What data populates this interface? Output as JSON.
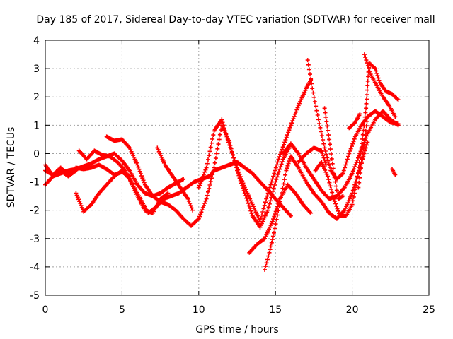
{
  "chart_data": {
    "type": "scatter",
    "title": "Day 185 of 2017, Sidereal Day-to-day VTEC variation (SDTVAR) for receiver mall",
    "xlabel": "GPS time / hours",
    "ylabel": "SDTVAR / TECUs",
    "xlim": [
      0,
      25
    ],
    "ylim": [
      -5,
      4
    ],
    "xticks": [
      "0",
      "5",
      "10",
      "15",
      "20",
      "25"
    ],
    "yticks": [
      "-5",
      "-4",
      "-3",
      "-2",
      "-1",
      "0",
      "1",
      "2",
      "3",
      "4"
    ],
    "grid": true,
    "marker": "plus",
    "color": "#ff0000",
    "series": [
      {
        "points": [
          [
            0.0,
            -0.6
          ],
          [
            0.5,
            -0.75
          ],
          [
            1.0,
            -0.5
          ],
          [
            1.5,
            -0.75
          ],
          [
            2.0,
            -0.5
          ],
          [
            2.5,
            -0.55
          ],
          [
            3.0,
            -0.5
          ],
          [
            3.5,
            -0.4
          ],
          [
            4.0,
            -0.55
          ],
          [
            4.5,
            -0.75
          ],
          [
            5.0,
            -0.65
          ],
          [
            5.5,
            -0.8
          ]
        ]
      },
      {
        "points": [
          [
            0.0,
            -1.1
          ],
          [
            0.5,
            -0.8
          ],
          [
            1.0,
            -0.7
          ],
          [
            1.5,
            -0.6
          ],
          [
            2.0,
            -0.55
          ],
          [
            2.5,
            -0.45
          ],
          [
            3.0,
            -0.35
          ],
          [
            3.5,
            -0.2
          ],
          [
            4.0,
            -0.1
          ],
          [
            4.5,
            0.0
          ],
          [
            5.0,
            -0.25
          ],
          [
            5.5,
            -0.6
          ],
          [
            6.0,
            -1.1
          ],
          [
            6.5,
            -1.4
          ],
          [
            7.0,
            -1.5
          ],
          [
            7.5,
            -1.4
          ],
          [
            8.0,
            -1.2
          ],
          [
            8.5,
            -1.05
          ],
          [
            9.0,
            -0.9
          ]
        ]
      },
      {
        "points": [
          [
            0.0,
            -0.4
          ],
          [
            0.5,
            -0.8
          ],
          [
            1.0,
            -0.6
          ],
          [
            1.5,
            -0.8
          ],
          [
            2.0,
            -0.6
          ]
        ]
      },
      {
        "points": [
          [
            2.0,
            -1.4
          ],
          [
            2.5,
            -2.05
          ],
          [
            3.0,
            -1.8
          ],
          [
            3.5,
            -1.4
          ],
          [
            4.0,
            -1.1
          ],
          [
            4.5,
            -0.8
          ],
          [
            5.0,
            -0.6
          ],
          [
            5.5,
            -0.9
          ],
          [
            6.0,
            -1.5
          ],
          [
            6.5,
            -2.0
          ],
          [
            7.0,
            -2.1
          ],
          [
            7.5,
            -1.6
          ],
          [
            8.0,
            -1.4
          ]
        ]
      },
      {
        "points": [
          [
            2.2,
            0.1
          ],
          [
            2.7,
            -0.2
          ],
          [
            3.2,
            0.1
          ],
          [
            3.7,
            -0.05
          ],
          [
            4.2,
            -0.1
          ],
          [
            4.7,
            -0.3
          ],
          [
            5.2,
            -0.6
          ],
          [
            5.7,
            -1.1
          ],
          [
            6.2,
            -1.6
          ],
          [
            6.7,
            -2.1
          ],
          [
            7.2,
            -1.9
          ],
          [
            7.7,
            -1.6
          ],
          [
            8.2,
            -1.5
          ],
          [
            8.7,
            -1.4
          ],
          [
            9.2,
            -1.2
          ],
          [
            9.7,
            -1.0
          ],
          [
            10.2,
            -0.9
          ],
          [
            10.7,
            -0.8
          ],
          [
            11.0,
            -0.6
          ],
          [
            11.5,
            -0.5
          ],
          [
            12.0,
            -0.4
          ],
          [
            12.5,
            -0.3
          ],
          [
            13.0,
            -0.5
          ],
          [
            13.5,
            -0.7
          ],
          [
            14.0,
            -1.0
          ],
          [
            14.5,
            -1.3
          ],
          [
            15.0,
            -1.6
          ],
          [
            15.5,
            -1.9
          ],
          [
            16.0,
            -2.2
          ]
        ]
      },
      {
        "points": [
          [
            4.0,
            0.6
          ],
          [
            4.5,
            0.45
          ],
          [
            5.0,
            0.5
          ],
          [
            5.5,
            0.2
          ],
          [
            6.0,
            -0.4
          ],
          [
            6.5,
            -1.1
          ],
          [
            7.0,
            -1.5
          ],
          [
            7.5,
            -1.7
          ],
          [
            8.0,
            -1.8
          ],
          [
            8.5,
            -2.0
          ],
          [
            9.0,
            -2.3
          ],
          [
            9.5,
            -2.55
          ],
          [
            10.0,
            -2.3
          ],
          [
            10.5,
            -1.6
          ],
          [
            11.0,
            -0.5
          ],
          [
            11.5,
            1.0
          ],
          [
            12.0,
            0.4
          ],
          [
            12.5,
            -0.6
          ],
          [
            13.0,
            -1.4
          ],
          [
            13.5,
            -2.2
          ],
          [
            14.0,
            -2.6
          ],
          [
            14.5,
            -2.0
          ],
          [
            15.0,
            -1.0
          ],
          [
            15.5,
            -0.2
          ],
          [
            16.0,
            0.3
          ]
        ]
      },
      {
        "points": [
          [
            7.3,
            0.2
          ],
          [
            7.8,
            -0.4
          ],
          [
            8.3,
            -0.8
          ],
          [
            8.8,
            -1.2
          ],
          [
            9.3,
            -1.6
          ],
          [
            9.6,
            -2.0
          ]
        ]
      },
      {
        "points": [
          [
            10.0,
            -1.2
          ],
          [
            10.5,
            -0.5
          ],
          [
            11.0,
            0.8
          ],
          [
            11.5,
            1.2
          ],
          [
            12.0,
            0.3
          ],
          [
            12.5,
            -0.5
          ],
          [
            13.0,
            -1.2
          ],
          [
            13.5,
            -1.8
          ],
          [
            14.0,
            -2.4
          ],
          [
            14.4,
            -1.6
          ],
          [
            14.8,
            -0.9
          ],
          [
            15.2,
            -0.2
          ],
          [
            15.6,
            0.4
          ],
          [
            16.0,
            1.0
          ],
          [
            16.5,
            1.7
          ],
          [
            17.0,
            2.3
          ],
          [
            17.3,
            2.6
          ]
        ]
      },
      {
        "points": [
          [
            13.3,
            -3.5
          ],
          [
            13.8,
            -3.2
          ],
          [
            14.3,
            -3.0
          ],
          [
            14.8,
            -2.4
          ],
          [
            15.3,
            -1.6
          ],
          [
            15.8,
            -1.1
          ],
          [
            16.3,
            -1.4
          ],
          [
            16.8,
            -1.8
          ],
          [
            17.3,
            -2.1
          ]
        ]
      },
      {
        "points": [
          [
            14.3,
            -4.1
          ],
          [
            14.6,
            -3.5
          ],
          [
            14.9,
            -2.8
          ],
          [
            15.3,
            -1.7
          ],
          [
            15.7,
            -0.6
          ],
          [
            16.0,
            -0.1
          ],
          [
            16.5,
            -0.5
          ],
          [
            17.0,
            -1.0
          ],
          [
            17.5,
            -1.4
          ],
          [
            18.0,
            -1.7
          ],
          [
            18.5,
            -2.1
          ],
          [
            19.0,
            -2.3
          ],
          [
            19.5,
            -2.0
          ],
          [
            20.0,
            -1.4
          ],
          [
            20.5,
            -0.5
          ],
          [
            21.0,
            0.4
          ]
        ]
      },
      {
        "points": [
          [
            15.5,
            0.0
          ],
          [
            16.0,
            0.35
          ],
          [
            16.5,
            0.0
          ],
          [
            17.0,
            -0.5
          ],
          [
            17.5,
            -0.9
          ],
          [
            18.0,
            -1.3
          ],
          [
            18.5,
            -1.6
          ],
          [
            19.0,
            -1.5
          ],
          [
            19.5,
            -1.2
          ],
          [
            20.0,
            -0.7
          ],
          [
            20.5,
            0.0
          ],
          [
            21.0,
            0.7
          ],
          [
            21.5,
            1.2
          ],
          [
            22.0,
            1.5
          ],
          [
            22.5,
            1.2
          ],
          [
            23.0,
            1.0
          ]
        ]
      },
      {
        "points": [
          [
            16.5,
            -0.3
          ],
          [
            17.0,
            0.0
          ],
          [
            17.5,
            0.2
          ],
          [
            18.0,
            0.1
          ],
          [
            18.3,
            -0.4
          ]
        ]
      },
      {
        "points": [
          [
            17.1,
            3.3
          ],
          [
            17.4,
            2.3
          ],
          [
            17.8,
            1.2
          ],
          [
            18.2,
            0.2
          ],
          [
            18.6,
            -0.6
          ],
          [
            19.0,
            -0.9
          ],
          [
            19.4,
            -0.7
          ],
          [
            19.8,
            0.0
          ],
          [
            20.2,
            0.6
          ],
          [
            20.6,
            1.0
          ],
          [
            21.0,
            1.3
          ]
        ]
      },
      {
        "points": [
          [
            18.2,
            1.6
          ],
          [
            18.5,
            0.5
          ],
          [
            18.8,
            -0.7
          ],
          [
            19.1,
            -1.6
          ],
          [
            19.4,
            -1.5
          ]
        ]
      },
      {
        "points": [
          [
            19.8,
            0.9
          ],
          [
            20.2,
            1.1
          ],
          [
            20.5,
            1.4
          ]
        ]
      },
      {
        "points": [
          [
            17.6,
            -0.6
          ],
          [
            18.0,
            -0.3
          ],
          [
            18.4,
            -0.8
          ],
          [
            18.8,
            -1.6
          ],
          [
            19.2,
            -2.2
          ],
          [
            19.6,
            -2.2
          ],
          [
            20.0,
            -1.8
          ],
          [
            20.3,
            -1.0
          ],
          [
            20.6,
            0.2
          ],
          [
            20.9,
            1.6
          ],
          [
            21.1,
            3.2
          ],
          [
            21.5,
            3.0
          ],
          [
            21.8,
            2.5
          ],
          [
            22.2,
            2.2
          ],
          [
            22.6,
            2.1
          ],
          [
            23.0,
            1.9
          ]
        ]
      },
      {
        "points": [
          [
            20.8,
            3.5
          ],
          [
            21.2,
            2.8
          ],
          [
            21.6,
            2.4
          ],
          [
            22.0,
            2.0
          ],
          [
            22.4,
            1.7
          ],
          [
            22.8,
            1.3
          ]
        ]
      },
      {
        "points": [
          [
            20.4,
            -1.2
          ],
          [
            20.7,
            0.0
          ],
          [
            21.0,
            1.3
          ],
          [
            21.5,
            1.5
          ],
          [
            22.0,
            1.3
          ],
          [
            22.5,
            1.1
          ],
          [
            23.0,
            1.05
          ]
        ]
      },
      {
        "points": [
          [
            22.6,
            -0.55
          ],
          [
            22.8,
            -0.75
          ]
        ]
      }
    ]
  }
}
